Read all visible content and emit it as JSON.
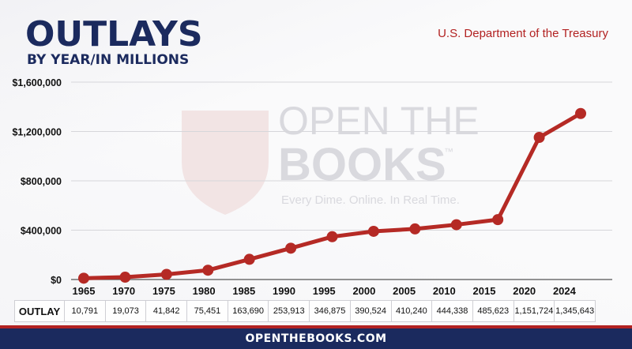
{
  "header": {
    "title": "OUTLAYS",
    "subtitle": "BY YEAR/IN MILLIONS",
    "source": "U.S. Department of the Treasury"
  },
  "watermark": {
    "line1": "OPEN THE",
    "line2": "BOOKS",
    "trademark": "™",
    "tagline": "Every Dime. Online. In Real Time."
  },
  "colors": {
    "title": "#1b2a5e",
    "line": "#b52a25",
    "source": "#b22222",
    "footer_bg": "#1b2a5e",
    "footer_stripe": "#b22222"
  },
  "chart_data": {
    "type": "line",
    "title": "OUTLAYS",
    "subtitle": "BY YEAR/IN MILLIONS",
    "categories": [
      "1965",
      "1970",
      "1975",
      "1980",
      "1985",
      "1990",
      "1995",
      "2000",
      "2005",
      "2010",
      "2015",
      "2020",
      "2024"
    ],
    "series": [
      {
        "name": "OUTLAY",
        "values": [
          10791,
          19073,
          41842,
          75451,
          163690,
          253913,
          346875,
          390524,
          410240,
          444338,
          485623,
          1151724,
          1345643
        ]
      }
    ],
    "value_labels": [
      "10,791",
      "19,073",
      "41,842",
      "75,451",
      "163,690",
      "253,913",
      "346,875",
      "390,524",
      "410,240",
      "444,338",
      "485,623",
      "1,151,724",
      "1,345,643"
    ],
    "yticks": [
      0,
      400000,
      800000,
      1200000,
      1600000
    ],
    "ytick_labels": [
      "$0",
      "$400,000",
      "$800,000",
      "$1,200,000",
      "$1,600,000"
    ],
    "ylim": [
      0,
      1600000
    ],
    "grid": true,
    "table_row_label": "OUTLAY"
  },
  "footer": {
    "text": "OPENTHEBOOKS.COM"
  }
}
